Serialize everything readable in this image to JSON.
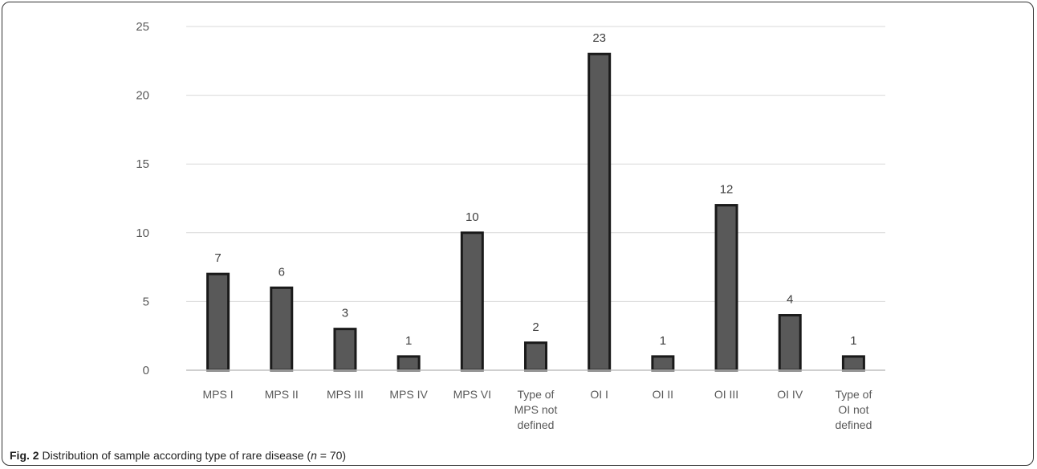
{
  "chart_data": {
    "type": "bar",
    "categories": [
      [
        "MPS I"
      ],
      [
        "MPS II"
      ],
      [
        "MPS III"
      ],
      [
        "MPS IV"
      ],
      [
        "MPS VI"
      ],
      [
        "Type of",
        "MPS not",
        "defined"
      ],
      [
        "OI I"
      ],
      [
        "OI II"
      ],
      [
        "OI III"
      ],
      [
        "OI IV"
      ],
      [
        "Type of",
        "OI not",
        "defined"
      ]
    ],
    "values": [
      7,
      6,
      3,
      1,
      10,
      2,
      23,
      1,
      12,
      4,
      1
    ],
    "ylim": [
      0,
      25
    ],
    "yticks": [
      0,
      5,
      10,
      15,
      20,
      25
    ],
    "grid": true,
    "data_labels": true,
    "bar_color": "#595959",
    "bar_edge_color": "#1a1a1a"
  },
  "caption": {
    "fig_label": "Fig. 2",
    "text_before": " Distribution of sample according type of rare disease (",
    "n_var": "n",
    "text_after": " = 70)"
  }
}
